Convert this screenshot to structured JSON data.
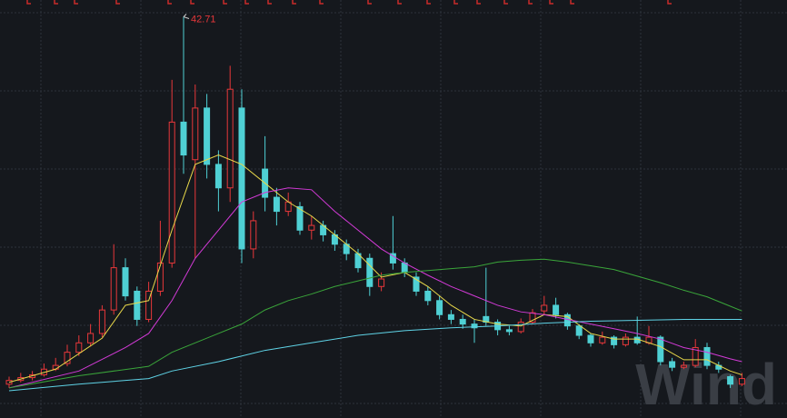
{
  "chart_data": {
    "type": "candlestick",
    "max_label": "42.71",
    "watermark": "Wind",
    "up_color": "#e8373a",
    "down_color": "#4fd0d4",
    "xlim": [
      -0.5,
      64.5
    ],
    "ylim": [
      0,
      44.5
    ],
    "candles": [
      [
        3.6,
        4.4,
        3.2,
        4.0
      ],
      [
        4.0,
        4.8,
        3.8,
        4.3
      ],
      [
        4.3,
        5.0,
        4.0,
        4.6
      ],
      [
        4.6,
        5.8,
        4.4,
        5.2
      ],
      [
        5.2,
        6.4,
        5.0,
        5.6
      ],
      [
        5.8,
        7.8,
        5.5,
        7.0
      ],
      [
        7.0,
        8.8,
        6.6,
        8.0
      ],
      [
        8.0,
        10.0,
        7.6,
        9.0
      ],
      [
        9.0,
        12.0,
        8.6,
        11.5
      ],
      [
        11.5,
        18.5,
        11.0,
        16.0
      ],
      [
        16.0,
        17.0,
        12.5,
        13.0
      ],
      [
        13.5,
        14.0,
        9.8,
        10.5
      ],
      [
        10.5,
        14.5,
        10.2,
        13.5
      ],
      [
        13.5,
        21.0,
        13.0,
        16.5
      ],
      [
        16.5,
        36.0,
        16.0,
        31.5
      ],
      [
        31.5,
        42.71,
        26.0,
        28.0
      ],
      [
        27.5,
        35.5,
        17.0,
        33.0
      ],
      [
        33.0,
        34.5,
        25.5,
        27.0
      ],
      [
        27.0,
        28.5,
        22.0,
        24.5
      ],
      [
        24.5,
        37.5,
        23.0,
        35.0
      ],
      [
        33.0,
        35.0,
        16.5,
        18.0
      ],
      [
        18.0,
        22.0,
        17.0,
        21.0
      ],
      [
        26.5,
        30.0,
        22.0,
        23.5
      ],
      [
        23.5,
        24.5,
        20.5,
        22.0
      ],
      [
        22.0,
        24.0,
        21.5,
        23.0
      ],
      [
        22.5,
        23.0,
        19.5,
        20.0
      ],
      [
        20.0,
        21.5,
        19.0,
        20.5
      ],
      [
        20.5,
        21.0,
        18.8,
        19.5
      ],
      [
        19.5,
        20.0,
        17.8,
        18.5
      ],
      [
        18.5,
        19.0,
        16.8,
        17.5
      ],
      [
        17.5,
        18.0,
        15.5,
        16.0
      ],
      [
        17.0,
        17.5,
        13.0,
        14.0
      ],
      [
        14.0,
        15.5,
        13.5,
        14.8
      ],
      [
        17.5,
        21.5,
        15.8,
        16.5
      ],
      [
        16.5,
        17.0,
        15.0,
        15.5
      ],
      [
        15.0,
        15.5,
        13.0,
        13.5
      ],
      [
        13.5,
        14.0,
        12.0,
        12.5
      ],
      [
        12.5,
        13.0,
        10.5,
        11.0
      ],
      [
        11.0,
        11.5,
        10.0,
        10.5
      ],
      [
        10.5,
        11.0,
        9.5,
        10.0
      ],
      [
        10.0,
        10.5,
        8.0,
        9.6
      ],
      [
        10.8,
        16.0,
        9.8,
        10.2
      ],
      [
        10.2,
        10.5,
        8.8,
        9.4
      ],
      [
        9.4,
        9.8,
        8.8,
        9.2
      ],
      [
        9.2,
        10.6,
        9.0,
        10.2
      ],
      [
        10.2,
        11.6,
        10.0,
        11.2
      ],
      [
        11.4,
        13.0,
        11.0,
        12.0
      ],
      [
        12.0,
        12.8,
        10.6,
        11.0
      ],
      [
        11.0,
        11.2,
        9.4,
        9.8
      ],
      [
        9.8,
        10.0,
        8.4,
        8.8
      ],
      [
        8.8,
        9.0,
        7.6,
        8.0
      ],
      [
        8.0,
        9.2,
        7.8,
        8.6
      ],
      [
        8.6,
        8.8,
        7.4,
        7.8
      ],
      [
        7.8,
        9.0,
        7.6,
        8.6
      ],
      [
        8.6,
        10.8,
        7.8,
        8.0
      ],
      [
        8.0,
        9.8,
        7.8,
        8.6
      ],
      [
        8.6,
        8.8,
        5.6,
        6.0
      ],
      [
        6.0,
        6.4,
        5.0,
        5.4
      ],
      [
        5.4,
        6.0,
        5.2,
        5.6
      ],
      [
        5.6,
        8.4,
        5.4,
        7.5
      ],
      [
        7.5,
        8.0,
        5.2,
        5.6
      ],
      [
        5.6,
        6.0,
        4.8,
        5.2
      ],
      [
        4.4,
        4.6,
        3.2,
        3.6
      ],
      [
        3.6,
        4.8,
        3.4,
        4.2
      ]
    ],
    "series": [
      {
        "color": "#e8d84a",
        "x": [
          0,
          4,
          8,
          10,
          12,
          14,
          16,
          18,
          20,
          22,
          24,
          26,
          28,
          30,
          32,
          34,
          36,
          38,
          40,
          42,
          44,
          46,
          48,
          50,
          52,
          54,
          56,
          58,
          60,
          62,
          63
        ],
        "values": [
          3.8,
          5.2,
          8.5,
          12,
          12.5,
          20,
          27,
          28,
          27,
          25,
          23,
          21.5,
          19.5,
          17.5,
          15,
          15.5,
          14,
          12,
          10.5,
          10,
          9.8,
          11,
          10.8,
          9,
          8.4,
          8.4,
          7.6,
          6.2,
          6.2,
          5,
          4.6
        ]
      },
      {
        "color": "#d23ad6",
        "x": [
          0,
          6,
          10,
          12,
          14,
          16,
          18,
          20,
          22,
          24,
          26,
          28,
          30,
          32,
          34,
          36,
          38,
          40,
          42,
          44,
          46,
          48,
          50,
          52,
          54,
          56,
          58,
          60,
          62,
          63
        ],
        "values": [
          3.2,
          5,
          7.5,
          9,
          12.5,
          17,
          20,
          23,
          24,
          24.5,
          24.3,
          22,
          20,
          18,
          16.5,
          15.2,
          14,
          13,
          12,
          11.3,
          11,
          10.5,
          10,
          9.5,
          9,
          8.4,
          7.5,
          7,
          6.3,
          6.0
        ]
      },
      {
        "color": "#3aa53a",
        "x": [
          0,
          6,
          12,
          14,
          16,
          18,
          20,
          22,
          24,
          26,
          28,
          30,
          32,
          34,
          36,
          38,
          40,
          42,
          44,
          46,
          48,
          50,
          52,
          54,
          56,
          58,
          60,
          62,
          63
        ],
        "values": [
          3.2,
          4.5,
          5.5,
          7,
          8,
          9,
          10,
          11.5,
          12.5,
          13.2,
          14,
          14.6,
          15.2,
          15.5,
          15.7,
          15.9,
          16.1,
          16.6,
          16.8,
          16.9,
          16.6,
          16.2,
          15.8,
          15.1,
          14.4,
          13.6,
          12.9,
          11.9,
          11.4
        ]
      },
      {
        "color": "#5fd3e6",
        "x": [
          0,
          6,
          12,
          14,
          18,
          22,
          26,
          30,
          34,
          38,
          42,
          46,
          50,
          54,
          58,
          62,
          63
        ],
        "values": [
          2.9,
          3.6,
          4.2,
          5.0,
          6.0,
          7.2,
          8.0,
          8.8,
          9.3,
          9.6,
          9.8,
          10.1,
          10.3,
          10.4,
          10.5,
          10.5,
          10.5
        ]
      }
    ]
  }
}
